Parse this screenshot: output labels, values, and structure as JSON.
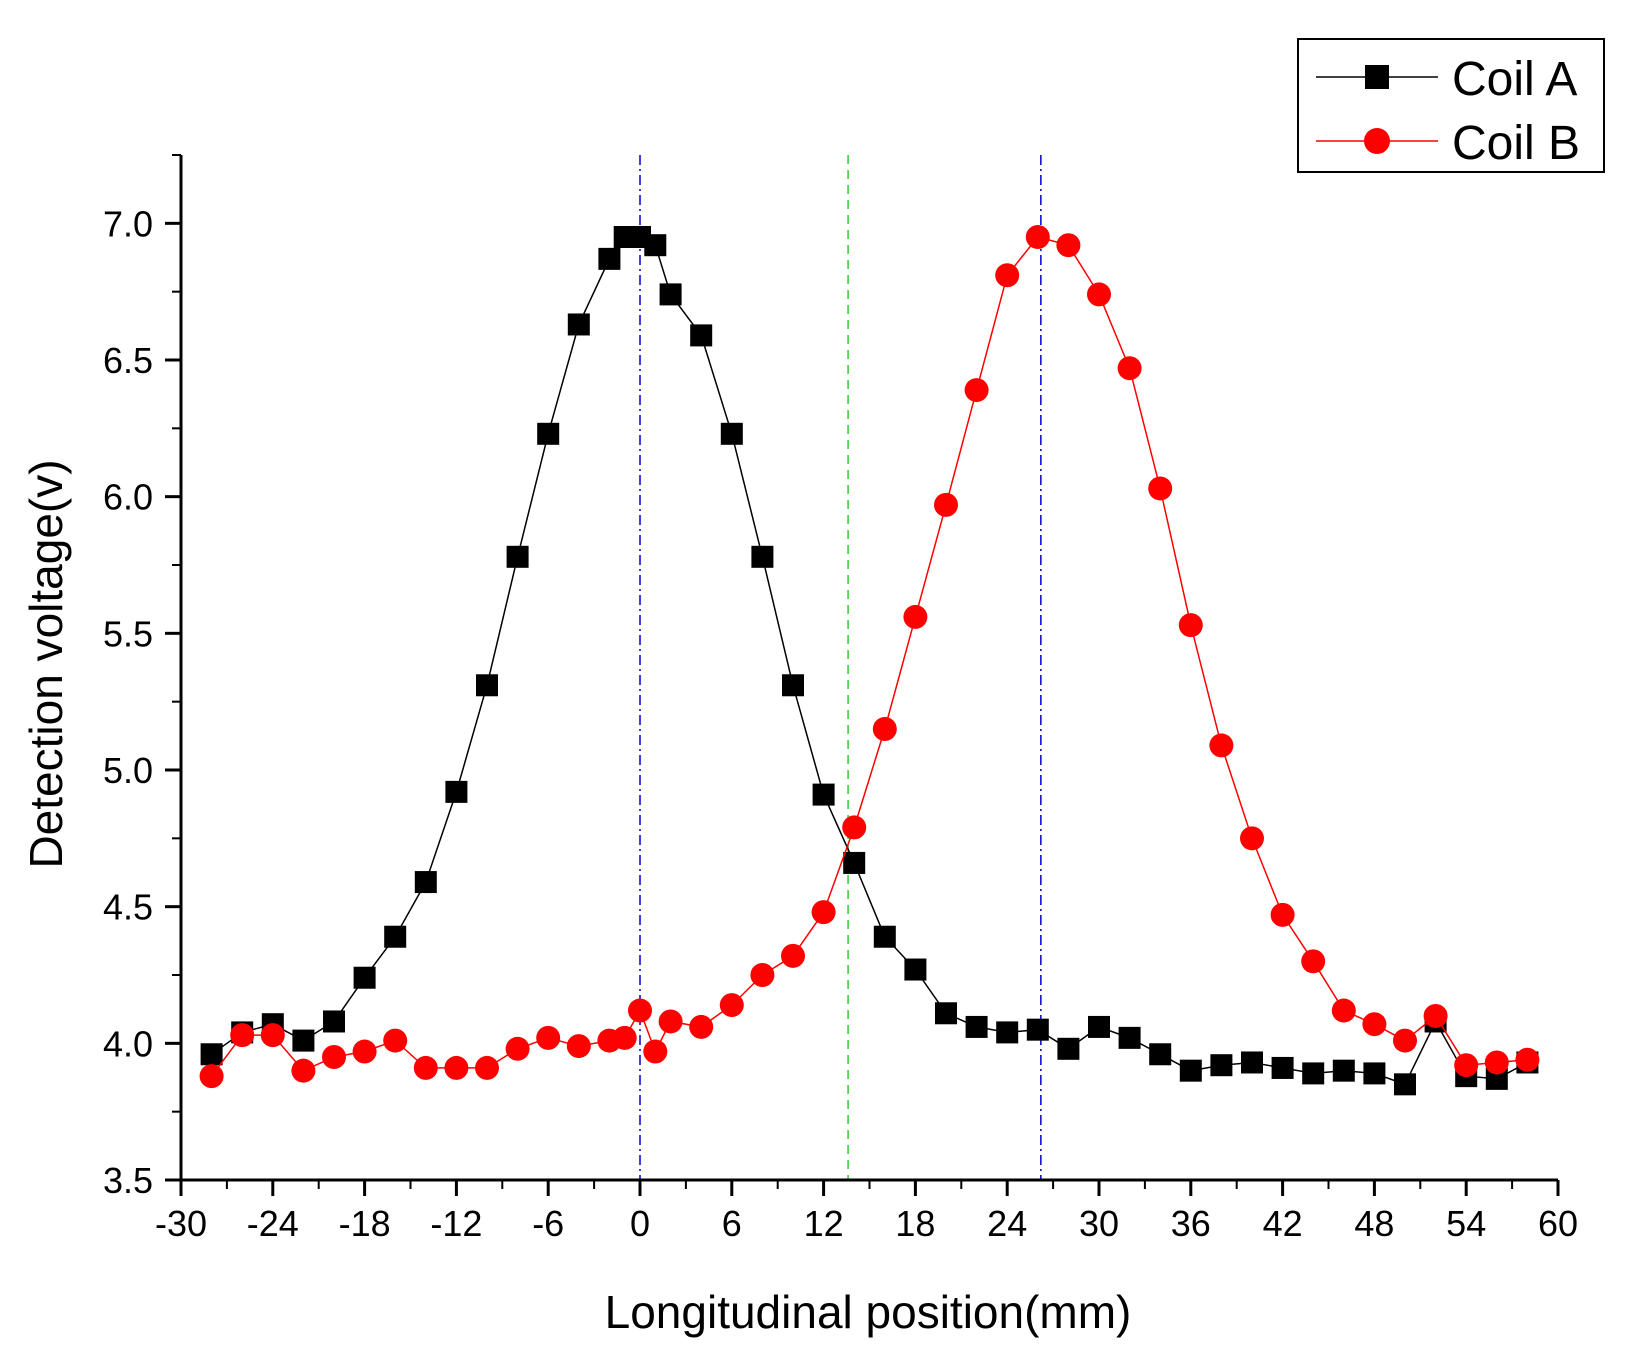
{
  "chart_data": {
    "type": "line",
    "xlabel": "Longitudinal position(mm)",
    "ylabel": "Detection voltage(v)",
    "xlim": [
      -30,
      60
    ],
    "ylim": [
      3.5,
      7.25
    ],
    "xticks": [
      "-30",
      "-24",
      "-18",
      "-12",
      "-6",
      "0",
      "6",
      "12",
      "18",
      "24",
      "30",
      "36",
      "42",
      "48",
      "54",
      "60"
    ],
    "yticks": [
      "3.5",
      "4.0",
      "4.5",
      "5.0",
      "5.5",
      "6.0",
      "6.5",
      "7.0"
    ],
    "reference_lines": [
      {
        "x": 0,
        "color": "#0000cc",
        "style": "dash-dot"
      },
      {
        "x": 13.6,
        "color": "#33cc33",
        "style": "dashed"
      },
      {
        "x": 26.2,
        "color": "#0000cc",
        "style": "dash-dot"
      }
    ],
    "legend_position": "top-right",
    "series": [
      {
        "name": "Coil A",
        "color": "#000000",
        "marker": "square",
        "x": [
          -28,
          -26,
          -24,
          -22,
          -20,
          -18,
          -16,
          -14,
          -12,
          -10,
          -8,
          -6,
          -4,
          -2,
          -1,
          0,
          1,
          2,
          4,
          6,
          8,
          10,
          12,
          14,
          16,
          18,
          20,
          22,
          24,
          26,
          28,
          30,
          32,
          34,
          36,
          38,
          40,
          42,
          44,
          46,
          48,
          50,
          52,
          54,
          56,
          58
        ],
        "y": [
          3.96,
          4.04,
          4.07,
          4.01,
          4.08,
          4.24,
          4.39,
          4.59,
          4.92,
          5.31,
          5.78,
          6.23,
          6.63,
          6.87,
          6.95,
          6.95,
          6.92,
          6.74,
          6.59,
          6.23,
          5.78,
          5.31,
          4.91,
          4.66,
          4.39,
          4.27,
          4.11,
          4.06,
          4.04,
          4.05,
          3.98,
          4.06,
          4.02,
          3.96,
          3.9,
          3.92,
          3.93,
          3.91,
          3.89,
          3.9,
          3.89,
          3.85,
          4.08,
          3.88,
          3.87,
          3.93
        ]
      },
      {
        "name": "Coil B",
        "color": "#ff0000",
        "marker": "circle",
        "x": [
          -28,
          -26,
          -24,
          -22,
          -20,
          -18,
          -16,
          -14,
          -12,
          -10,
          -8,
          -6,
          -4,
          -2,
          -1,
          0,
          1,
          2,
          4,
          6,
          8,
          10,
          12,
          14,
          16,
          18,
          20,
          22,
          24,
          26,
          28,
          30,
          32,
          34,
          36,
          38,
          40,
          42,
          44,
          46,
          48,
          50,
          52,
          54,
          56,
          58
        ],
        "y": [
          3.88,
          4.03,
          4.03,
          3.9,
          3.95,
          3.97,
          4.01,
          3.91,
          3.91,
          3.91,
          3.98,
          4.02,
          3.99,
          4.01,
          4.02,
          4.12,
          3.97,
          4.08,
          4.06,
          4.14,
          4.25,
          4.32,
          4.48,
          4.79,
          5.15,
          5.56,
          5.97,
          6.39,
          6.81,
          6.95,
          6.92,
          6.74,
          6.47,
          6.03,
          5.53,
          5.09,
          4.75,
          4.47,
          4.3,
          4.12,
          4.07,
          4.01,
          4.1,
          3.92,
          3.93,
          3.94
        ]
      }
    ]
  }
}
